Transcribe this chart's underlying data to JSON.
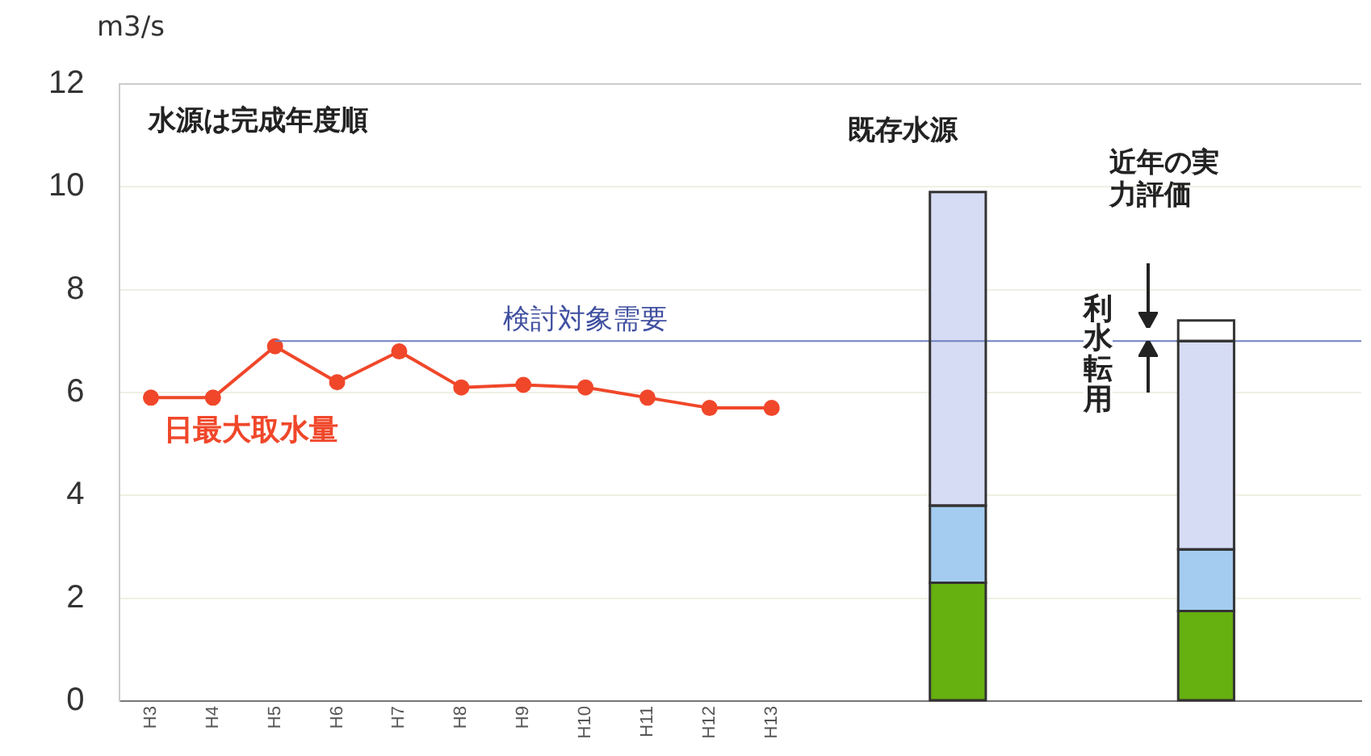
{
  "chart_data": {
    "type": "bar",
    "stacked": true,
    "ylabel": "m3/s",
    "categories": [
      "H3",
      "H4",
      "H5",
      "H6",
      "H7",
      "H8",
      "H9",
      "H10",
      "H11",
      "H12",
      "H13",
      null,
      null,
      null,
      null,
      null,
      null,
      null,
      null,
      null
    ],
    "series": [
      {
        "name": "日最大取水量",
        "type": "line",
        "color": "#f0472a",
        "values": [
          5.9,
          5.9,
          6.9,
          6.2,
          6.8,
          6.1,
          6.15,
          6.1,
          5.9,
          5.7,
          5.7,
          null,
          null,
          null,
          null,
          null,
          null,
          null,
          null,
          null
        ]
      },
      {
        "color": "#66b010",
        "values": [
          null,
          null,
          null,
          null,
          null,
          null,
          null,
          null,
          null,
          null,
          null,
          null,
          null,
          2.3,
          null,
          null,
          null,
          1.75,
          null,
          null
        ]
      },
      {
        "color": "#a4ccf0",
        "values": [
          null,
          null,
          null,
          null,
          null,
          null,
          null,
          null,
          null,
          null,
          null,
          null,
          null,
          1.5,
          null,
          null,
          null,
          1.2,
          null,
          null
        ]
      },
      {
        "color": "#d6dcf4",
        "values": [
          null,
          null,
          null,
          null,
          null,
          null,
          null,
          null,
          null,
          null,
          null,
          null,
          null,
          6.1,
          null,
          null,
          null,
          4.05,
          null,
          null
        ]
      },
      {
        "color": "#ffffff",
        "values": [
          null,
          null,
          null,
          null,
          null,
          null,
          null,
          null,
          null,
          null,
          null,
          null,
          null,
          null,
          null,
          null,
          null,
          0.4,
          null,
          null
        ]
      }
    ],
    "ylim": [
      0,
      12
    ],
    "yticks": [
      0,
      2,
      4,
      6,
      8,
      10,
      12
    ],
    "grid": "y",
    "marker": "circle",
    "line_style": "solid",
    "ref_lines": [
      {
        "axis": "y",
        "value": 7,
        "label": "検討対象需要",
        "color": "#7080c0"
      }
    ],
    "annotations": [
      "水源は完成年度順",
      "既存水源",
      "近年の実力評価",
      "利水転用"
    ]
  }
}
